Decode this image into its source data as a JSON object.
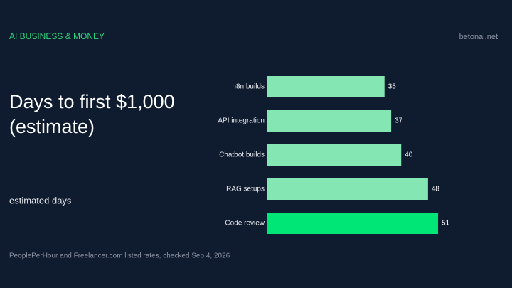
{
  "header": {
    "kicker": "AI BUSINESS & MONEY",
    "site": "betonai.net"
  },
  "chart_data": {
    "type": "bar",
    "orientation": "horizontal",
    "title": "Days to first $1,000 (estimate)",
    "x_label": "estimated days",
    "categories": [
      "n8n builds",
      "API integration",
      "Chatbot builds",
      "RAG setups",
      "Code review"
    ],
    "values": [
      35,
      37,
      40,
      48,
      51
    ],
    "colors": [
      "#84e6b3",
      "#84e6b3",
      "#84e6b3",
      "#84e6b3",
      "#00e676"
    ],
    "xlim": [
      0,
      51
    ],
    "source": "PeoplePerHour and Freelancer.com listed rates, checked Sep 4, 2026"
  }
}
